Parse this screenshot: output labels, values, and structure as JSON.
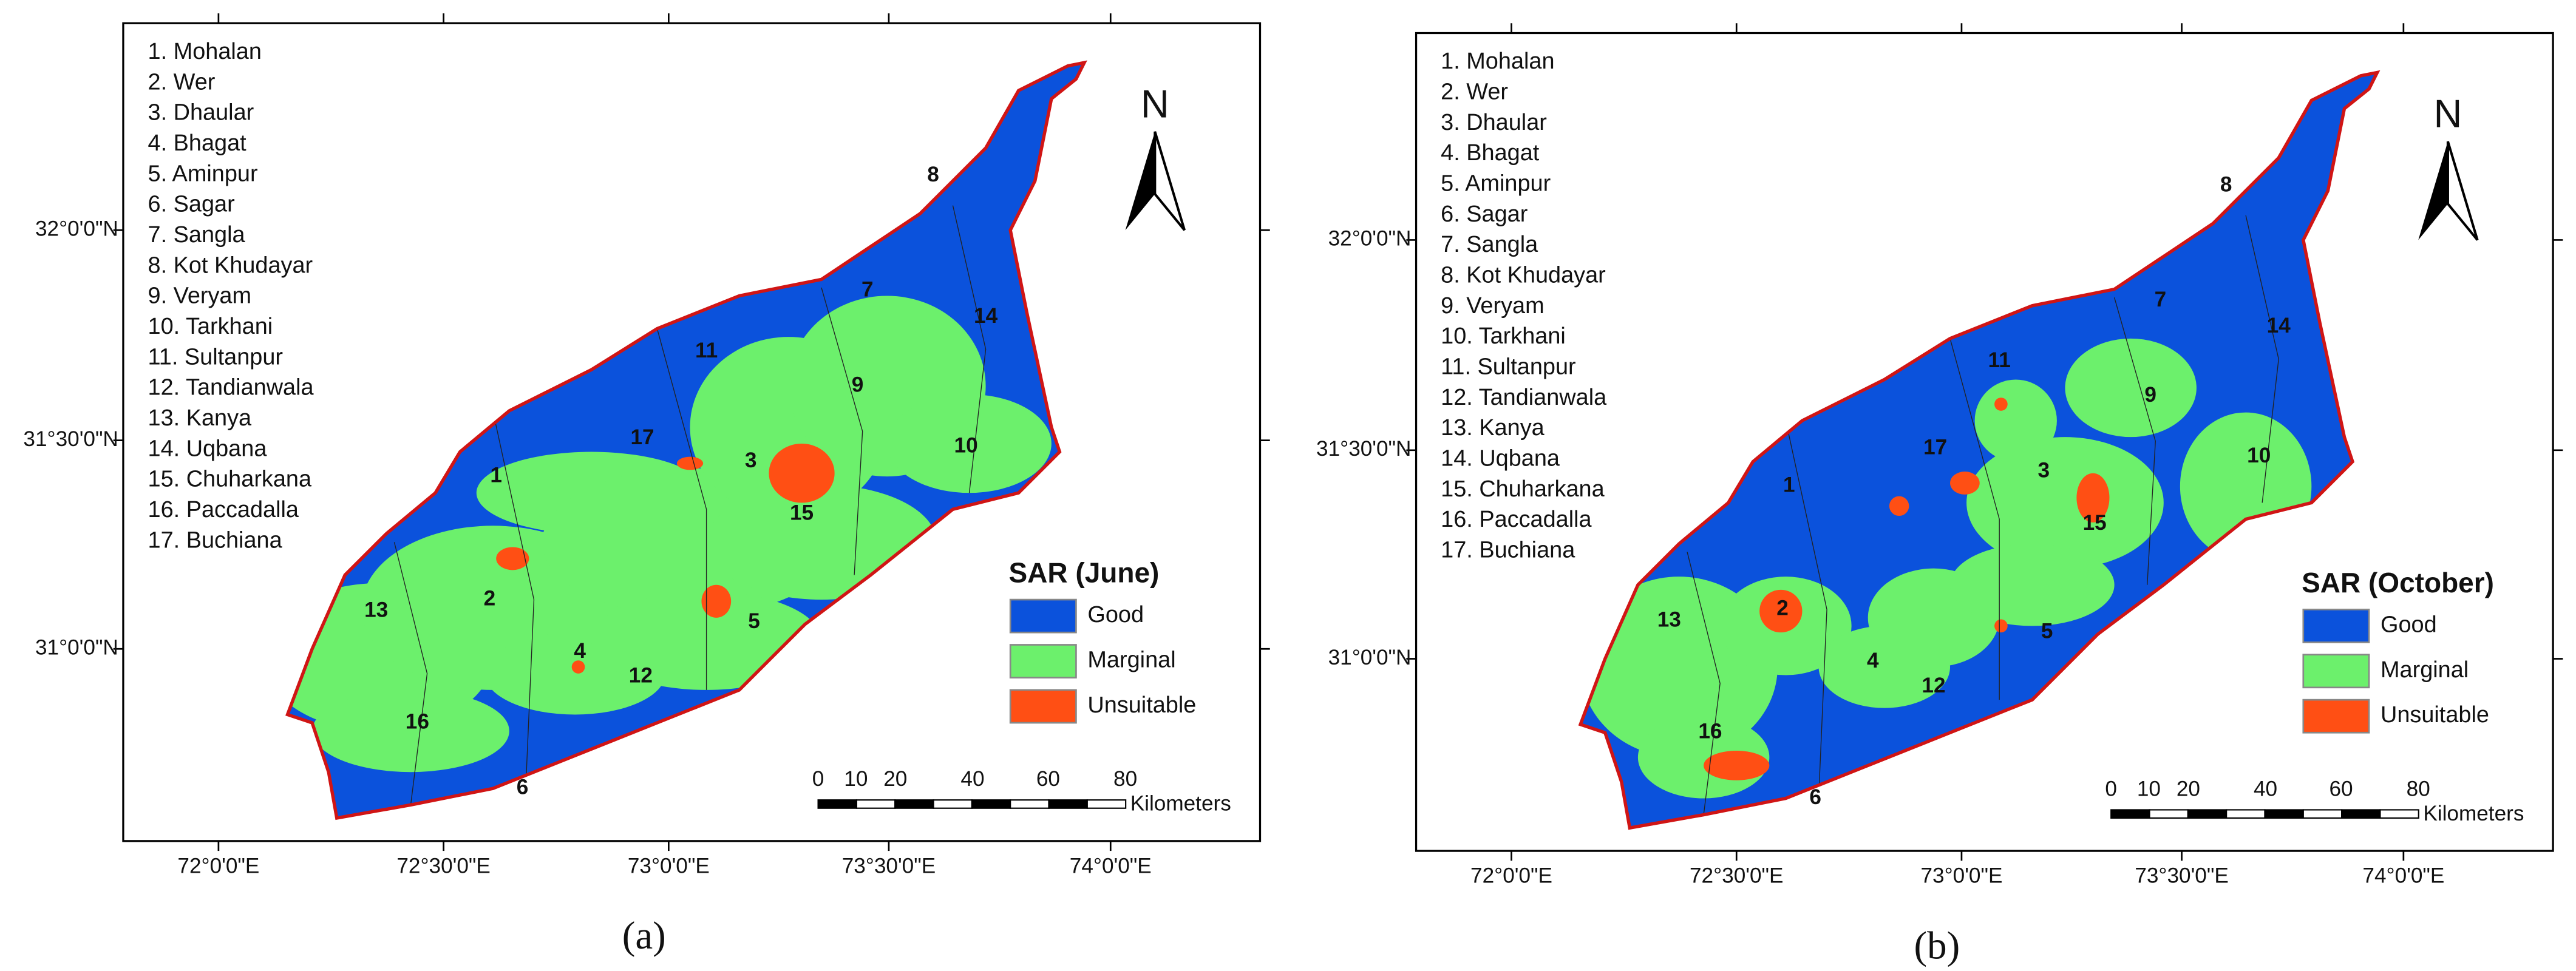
{
  "panels": [
    {
      "caption": "(a)",
      "districts": [
        "1. Mohalan",
        "2. Wer",
        "3. Dhaular",
        "4. Bhagat",
        "5. Aminpur",
        "6. Sagar",
        "7. Sangla",
        "8. Kot Khudayar",
        "9. Veryam",
        "10. Tarkhani",
        "11. Sultanpur",
        "12. Tandianwala",
        "13. Kanya",
        "14. Uqbana",
        "15. Chuharkana",
        "16. Paccadalla",
        "17. Buchiana"
      ],
      "map_labels": [
        "1",
        "2",
        "3",
        "4",
        "5",
        "6",
        "7",
        "8",
        "9",
        "10",
        "11",
        "12",
        "13",
        "14",
        "15",
        "16",
        "17"
      ],
      "lat_labels": [
        "32°0'0\"N",
        "31°30'0\"N",
        "31°0'0\"N"
      ],
      "lon_labels": [
        "72°0'0\"E",
        "72°30'0\"E",
        "73°0'0\"E",
        "73°30'0\"E",
        "74°0'0\"E"
      ],
      "north": "N",
      "legend": {
        "title": "SAR (June)",
        "items": [
          "Good",
          "Marginal",
          "Unsuitable"
        ]
      },
      "scale_bar": {
        "ticks": [
          0,
          10,
          20,
          40,
          60,
          80
        ],
        "unit": "Kilometers"
      }
    },
    {
      "caption": "(b)",
      "districts": [
        "1. Mohalan",
        "2. Wer",
        "3. Dhaular",
        "4. Bhagat",
        "5. Aminpur",
        "6. Sagar",
        "7. Sangla",
        "8. Kot Khudayar",
        "9. Veryam",
        "10. Tarkhani",
        "11. Sultanpur",
        "12. Tandianwala",
        "13. Kanya",
        "14. Uqbana",
        "15. Chuharkana",
        "16. Paccadalla",
        "17. Buchiana"
      ],
      "map_labels": [
        "1",
        "2",
        "3",
        "4",
        "5",
        "6",
        "7",
        "8",
        "9",
        "10",
        "11",
        "12",
        "13",
        "14",
        "15",
        "16",
        "17"
      ],
      "lat_labels": [
        "32°0'0\"N",
        "31°30'0\"N",
        "31°0'0\"N"
      ],
      "lon_labels": [
        "72°0'0\"E",
        "72°30'0\"E",
        "73°0'0\"E",
        "73°30'0\"E",
        "74°0'0\"E"
      ],
      "north": "N",
      "legend": {
        "title": "SAR (October)",
        "items": [
          "Good",
          "Marginal",
          "Unsuitable"
        ]
      },
      "scale_bar": {
        "ticks": [
          0,
          10,
          20,
          40,
          60,
          80
        ],
        "unit": "Kilometers"
      }
    }
  ]
}
